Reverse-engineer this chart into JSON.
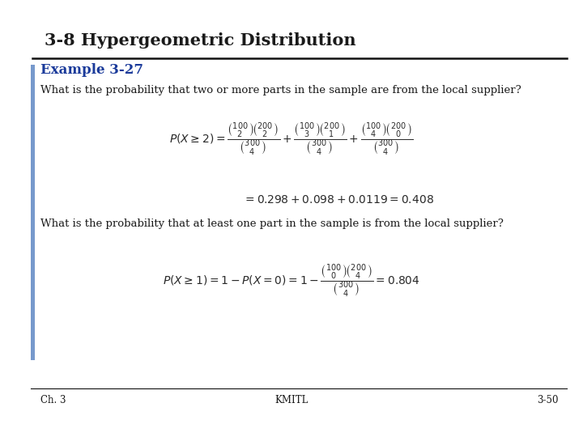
{
  "title": "3-8 Hypergeometric Distribution",
  "example_label": "Example 3-27",
  "question1": "What is the probability that two or more parts in the sample are from the local supplier?",
  "result1": "= 0.298 + 0.098 + 0.0119 = 0.408",
  "question2": "What is the probability that at least one part in the sample is from the local supplier?",
  "footer_left": "Ch. 3",
  "footer_center": "KMITL",
  "footer_right": "3-50",
  "bg_color": "#ffffff",
  "title_color": "#1a1a1a",
  "example_color": "#1a3a9a",
  "text_color": "#1a1a1a",
  "formula_color": "#2a2a2a",
  "left_bar_color": "#7799cc",
  "line_color": "#111111",
  "title_fontsize": 15,
  "example_fontsize": 12,
  "question_fontsize": 9.5,
  "formula_fontsize": 10,
  "result_fontsize": 10,
  "footer_fontsize": 8.5
}
